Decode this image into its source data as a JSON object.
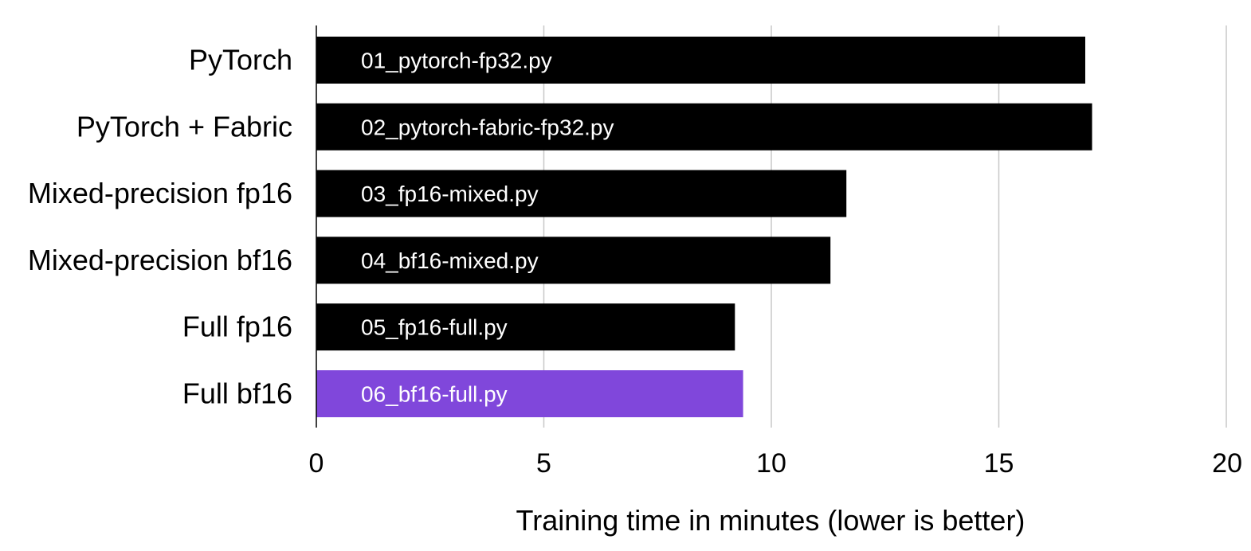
{
  "chart_data": {
    "type": "bar",
    "orientation": "horizontal",
    "categories": [
      "PyTorch",
      "PyTorch + Fabric",
      "Mixed-precision fp16",
      "Mixed-precision bf16",
      "Full fp16",
      "Full bf16"
    ],
    "bar_labels": [
      "01_pytorch-fp32.py",
      "02_pytorch-fabric-fp32.py",
      "03_fp16-mixed.py",
      "04_bf16-mixed.py",
      "05_fp16-full.py",
      "06_bf16-full.py"
    ],
    "values": [
      16.9,
      17.05,
      11.65,
      11.3,
      9.2,
      9.38
    ],
    "highlighted_index": 5,
    "xlabel": "Training time in minutes (lower is better)",
    "ylabel": "",
    "xlim": [
      0,
      20
    ],
    "xticks": [
      0,
      5,
      10,
      15,
      20
    ],
    "grid": "vertical",
    "colors": {
      "bar": "#000000",
      "highlight": "#8047db",
      "grid": "#c8c8c8",
      "bar_text": "#ffffff"
    }
  }
}
